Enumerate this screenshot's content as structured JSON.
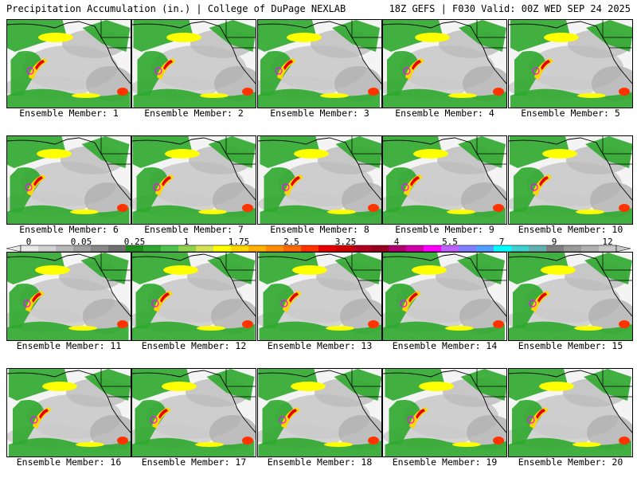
{
  "header": {
    "left": "Precipitation Accumulation (in.) | College of DuPage NEXLAB",
    "right": "18Z GEFS | F030 Valid: 00Z WED SEP 24 2025"
  },
  "panels": [
    {
      "label": "Ensemble Member: 1"
    },
    {
      "label": "Ensemble Member: 2"
    },
    {
      "label": "Ensemble Member: 3"
    },
    {
      "label": "Ensemble Member: 4"
    },
    {
      "label": "Ensemble Member: 5"
    },
    {
      "label": "Ensemble Member: 6"
    },
    {
      "label": "Ensemble Member: 7"
    },
    {
      "label": "Ensemble Member: 8"
    },
    {
      "label": "Ensemble Member: 9"
    },
    {
      "label": "Ensemble Member: 10"
    },
    {
      "label": "Ensemble Member: 11"
    },
    {
      "label": "Ensemble Member: 12"
    },
    {
      "label": "Ensemble Member: 13"
    },
    {
      "label": "Ensemble Member: 14"
    },
    {
      "label": "Ensemble Member: 15"
    },
    {
      "label": "Ensemble Member: 16"
    },
    {
      "label": "Ensemble Member: 17"
    },
    {
      "label": "Ensemble Member: 18"
    },
    {
      "label": "Ensemble Member: 19"
    },
    {
      "label": "Ensemble Member: 20"
    }
  ],
  "colorbar": {
    "tick_labels": [
      "0",
      "0.05",
      "0.25",
      "1",
      "1.75",
      "2.5",
      "3.25",
      "4",
      "5.5",
      "7",
      "9",
      "12"
    ],
    "colors": [
      "#e8e8e8",
      "#d0d0d0",
      "#b8b8b8",
      "#a0a0a0",
      "#888888",
      "#707070",
      "#1e8f1e",
      "#2ea82e",
      "#4cc24c",
      "#8fd14a",
      "#d4e157",
      "#ffff00",
      "#ffd700",
      "#ffb000",
      "#ff8c00",
      "#ff6a00",
      "#ff3300",
      "#e60000",
      "#cc0000",
      "#b00020",
      "#99001f",
      "#b0006e",
      "#d100a8",
      "#ff00ff",
      "#c060ff",
      "#8080ff",
      "#4fa0ff",
      "#00ffff",
      "#40d0d0",
      "#60b0b0",
      "#808080",
      "#9a9a9a",
      "#b0b0b0",
      "#c8c8c8"
    ]
  }
}
